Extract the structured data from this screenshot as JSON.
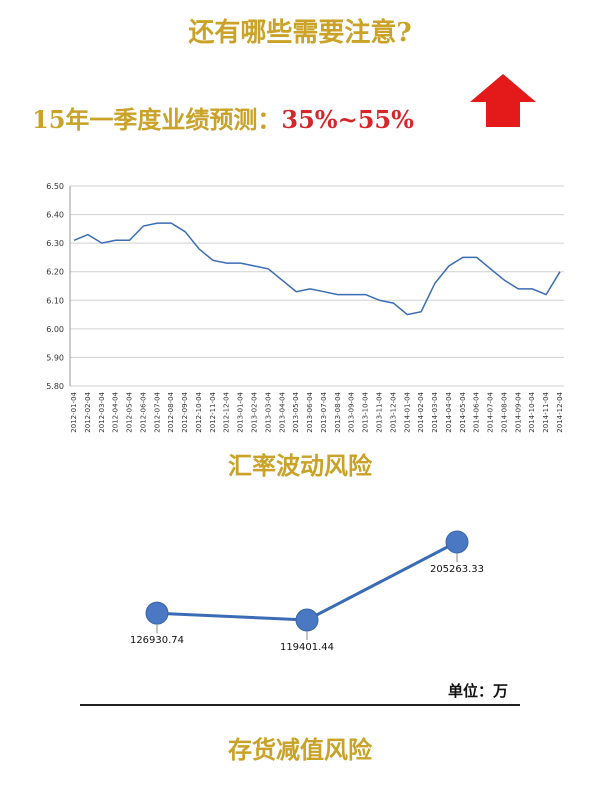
{
  "heading": "还有哪些需要注意?",
  "forecast": {
    "label": "15年一季度业绩预测：",
    "value": "35%~55%"
  },
  "icons": {
    "trend": "up-arrow-icon"
  },
  "colors": {
    "gold": "#C9A227",
    "red": "#D7262A",
    "line": "#3A6BB5",
    "dot": "#4A78C2"
  },
  "chart_data": [
    {
      "type": "line",
      "title": "汇率波动风险",
      "ylim": [
        5.8,
        6.5
      ],
      "yticks": [
        "6.50",
        "6.40",
        "6.30",
        "6.20",
        "6.10",
        "6.00",
        "5.90",
        "5.80"
      ],
      "xticks": [
        "2012-01-04",
        "2012-02-04",
        "2012-03-04",
        "2012-04-04",
        "2012-05-04",
        "2012-06-04",
        "2012-07-04",
        "2012-08-04",
        "2012-09-04",
        "2012-10-04",
        "2012-11-04",
        "2012-12-04",
        "2013-01-04",
        "2013-02-04",
        "2013-03-04",
        "2013-04-04",
        "2013-05-04",
        "2013-06-04",
        "2013-07-04",
        "2013-08-04",
        "2013-09-04",
        "2013-10-04",
        "2013-11-04",
        "2013-12-04",
        "2014-01-04",
        "2014-02-04",
        "2014-03-04",
        "2014-04-04",
        "2014-05-04",
        "2014-06-04",
        "2014-07-04",
        "2014-08-04",
        "2014-09-04",
        "2014-10-04",
        "2014-11-04",
        "2014-12-04"
      ],
      "grid": true,
      "series": [
        {
          "x": [
            "2012-01-04",
            "2012-02-04",
            "2012-03-04",
            "2012-04-04",
            "2012-05-04",
            "2012-06-04",
            "2012-07-04",
            "2012-08-04",
            "2012-09-04",
            "2012-10-04",
            "2012-11-04",
            "2012-12-04",
            "2013-01-04",
            "2013-02-04",
            "2013-03-04",
            "2013-04-04",
            "2013-05-04",
            "2013-06-04",
            "2013-07-04",
            "2013-08-04",
            "2013-09-04",
            "2013-10-04",
            "2013-11-04",
            "2013-12-04",
            "2014-01-04",
            "2014-02-04",
            "2014-03-04",
            "2014-04-04",
            "2014-05-04",
            "2014-06-04",
            "2014-07-04",
            "2014-08-04",
            "2014-09-04",
            "2014-10-04",
            "2014-11-04",
            "2014-12-04"
          ],
          "values": [
            6.31,
            6.33,
            6.3,
            6.31,
            6.31,
            6.36,
            6.37,
            6.37,
            6.34,
            6.28,
            6.24,
            6.23,
            6.23,
            6.22,
            6.21,
            6.17,
            6.13,
            6.14,
            6.13,
            6.12,
            6.12,
            6.12,
            6.1,
            6.09,
            6.05,
            6.06,
            6.16,
            6.22,
            6.25,
            6.25,
            6.21,
            6.17,
            6.14,
            6.14,
            6.12,
            6.2
          ]
        }
      ]
    },
    {
      "type": "line",
      "title": "存货减值风险",
      "unit_label": "单位：万",
      "series": [
        {
          "values": [
            126930.74,
            119401.44,
            205263.33
          ],
          "labels": [
            "126930.74",
            "119401.44",
            "205263.33"
          ]
        }
      ]
    }
  ]
}
